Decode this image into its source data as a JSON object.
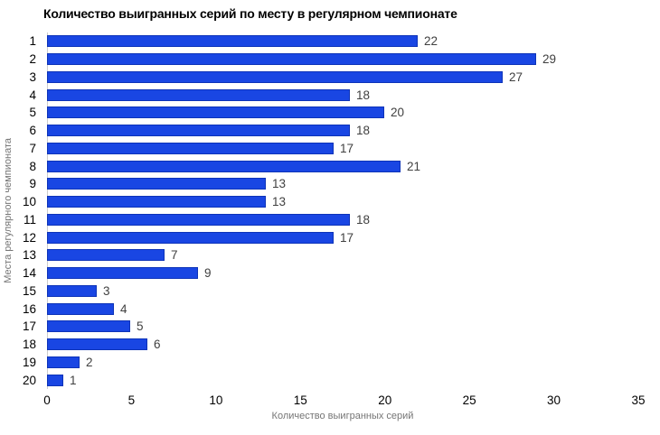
{
  "title": "Количество выигранных серий по месту в регулярном чемпионате",
  "chart_data": {
    "type": "bar",
    "orientation": "horizontal",
    "title": "Количество выигранных серий по месту в регулярном чемпионате",
    "categories": [
      "1",
      "2",
      "3",
      "4",
      "5",
      "6",
      "7",
      "8",
      "9",
      "10",
      "11",
      "12",
      "13",
      "14",
      "15",
      "16",
      "17",
      "18",
      "19",
      "20"
    ],
    "values": [
      22,
      29,
      27,
      18,
      20,
      18,
      17,
      21,
      13,
      13,
      18,
      17,
      7,
      9,
      3,
      4,
      5,
      6,
      2,
      1
    ],
    "value_labels": [
      "22",
      "29",
      "27",
      "18",
      "20",
      "18",
      "17",
      "21",
      "13",
      "13",
      "18",
      "17",
      "7",
      "9",
      "3",
      "4",
      "5",
      "6",
      "2",
      "1"
    ],
    "xlabel": "Количество выигранных серий",
    "ylabel": "Места регулярного чемпионата",
    "xlim": [
      0,
      35
    ],
    "xticks": [
      0,
      5,
      10,
      15,
      20,
      25,
      30,
      35
    ],
    "grid": false,
    "legend": "none",
    "bar_color": "#1946e3",
    "bar_border_color": "#0d33b8",
    "tick_label_color": "#000000",
    "value_label_color": "#404040",
    "axis_label_color": "#757575"
  }
}
